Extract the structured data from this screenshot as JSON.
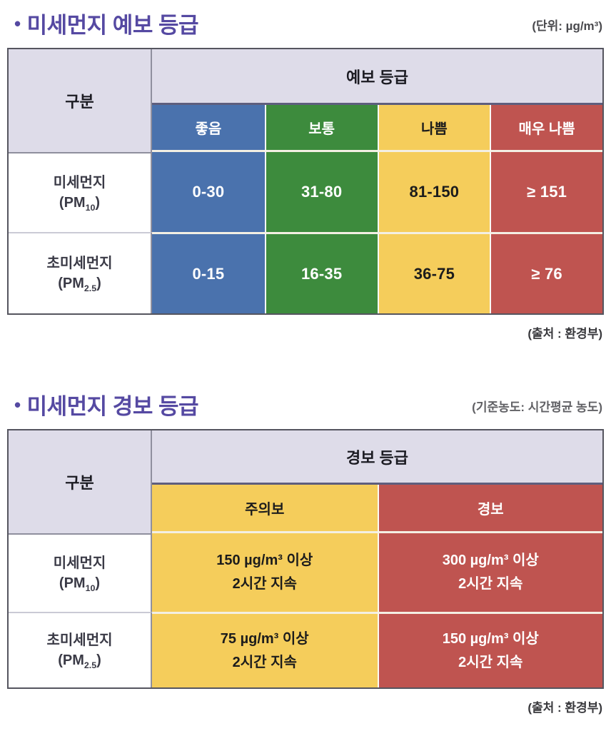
{
  "colors": {
    "title_purple": "#5549a2",
    "header_lavender": "#dedce9",
    "good_blue": "#4a72ad",
    "normal_green": "#3d8b3d",
    "bad_yellow": "#f5cd5b",
    "verybad_red": "#bf5450"
  },
  "section1": {
    "bullet": "•",
    "title": "미세먼지 예보 등급",
    "unit": "(단위: µg/m³)",
    "table": {
      "corner_header": "구분",
      "group_header": "예보 등급",
      "columns": [
        {
          "label": "좋음",
          "color": "#4a72ad",
          "text_color": "#ffffff"
        },
        {
          "label": "보통",
          "color": "#3d8b3d",
          "text_color": "#ffffff"
        },
        {
          "label": "나쁨",
          "color": "#f5cd5b",
          "text_color": "#1c1c1c"
        },
        {
          "label": "매우 나쁨",
          "color": "#bf5450",
          "text_color": "#ffffff"
        }
      ],
      "rows": [
        {
          "name": "미세먼지",
          "pm_prefix": "(PM",
          "pm_sub": "10",
          "pm_suffix": ")",
          "values": [
            "0-30",
            "31-80",
            "81-150",
            "≥ 151"
          ]
        },
        {
          "name": "초미세먼지",
          "pm_prefix": "(PM",
          "pm_sub": "2.5",
          "pm_suffix": ")",
          "values": [
            "0-15",
            "16-35",
            "36-75",
            "≥ 76"
          ]
        }
      ]
    },
    "source": "(출처 : 환경부)"
  },
  "section2": {
    "bullet": "•",
    "title": "미세먼지 경보 등급",
    "unit": "(기준농도: 시간평균 농도)",
    "table": {
      "corner_header": "구분",
      "group_header": "경보 등급",
      "columns": [
        {
          "label": "주의보",
          "color": "#f5cd5b",
          "text_color": "#1c1c1c"
        },
        {
          "label": "경보",
          "color": "#bf5450",
          "text_color": "#ffffff"
        }
      ],
      "rows": [
        {
          "name": "미세먼지",
          "pm_prefix": "(PM",
          "pm_sub": "10",
          "pm_suffix": ")",
          "values": [
            "150 µg/m³ 이상\n2시간 지속",
            "300 µg/m³ 이상\n2시간 지속"
          ]
        },
        {
          "name": "초미세먼지",
          "pm_prefix": "(PM",
          "pm_sub": "2.5",
          "pm_suffix": ")",
          "values": [
            "75 µg/m³ 이상\n2시간 지속",
            "150 µg/m³ 이상\n2시간 지속"
          ]
        }
      ]
    },
    "source": "(출처 : 환경부)"
  }
}
